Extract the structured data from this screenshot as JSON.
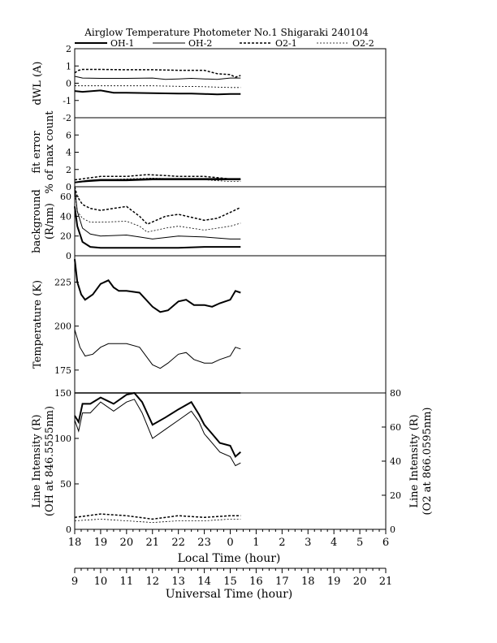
{
  "header": {
    "title": "Airglow Temperature Photometer No.1  Shigaraki  240104",
    "legend": [
      {
        "name": "OH-1",
        "style": "solid-thick"
      },
      {
        "name": "OH-2",
        "style": "solid-thin"
      },
      {
        "name": "O2-1",
        "style": "dashed-thick"
      },
      {
        "name": "O2-2",
        "style": "dashed-thin"
      }
    ]
  },
  "chart_data": [
    {
      "type": "line",
      "panel": "dwl",
      "ylabel": "dWL (A)",
      "ylim": [
        -2,
        2
      ],
      "yticks": [
        -2,
        -1,
        0,
        1,
        2
      ],
      "series": [
        {
          "name": "OH-1",
          "x": [
            18.0,
            18.3,
            19.0,
            19.5,
            20.0,
            21.0,
            22.0,
            22.5,
            23.0,
            23.5,
            24.0,
            24.4
          ],
          "y": [
            -0.45,
            -0.5,
            -0.42,
            -0.55,
            -0.55,
            -0.58,
            -0.6,
            -0.6,
            -0.62,
            -0.65,
            -0.62,
            -0.62
          ]
        },
        {
          "name": "OH-2",
          "x": [
            18.0,
            18.3,
            19.0,
            20.0,
            21.0,
            21.5,
            22.0,
            22.5,
            23.0,
            23.5,
            24.0,
            24.4
          ],
          "y": [
            0.4,
            0.3,
            0.28,
            0.28,
            0.3,
            0.22,
            0.25,
            0.28,
            0.25,
            0.22,
            0.3,
            0.3
          ]
        },
        {
          "name": "O2-1",
          "x": [
            18.0,
            18.15,
            18.3,
            19.0,
            20.0,
            21.0,
            22.0,
            23.0,
            23.5,
            24.0,
            24.2,
            24.4
          ],
          "y": [
            0.6,
            0.75,
            0.8,
            0.8,
            0.78,
            0.78,
            0.75,
            0.75,
            0.55,
            0.5,
            0.35,
            0.45
          ]
        },
        {
          "name": "O2-2",
          "x": [
            18.0,
            19.0,
            20.0,
            21.0,
            22.0,
            23.0,
            24.0,
            24.4
          ],
          "y": [
            -0.15,
            -0.15,
            -0.15,
            -0.15,
            -0.18,
            -0.2,
            -0.25,
            -0.25
          ]
        }
      ]
    },
    {
      "type": "line",
      "panel": "fit_error",
      "ylabel": "fit error",
      "ylabel2": "% of max count",
      "ylim": [
        0,
        8
      ],
      "yticks": [
        0,
        2,
        4,
        6
      ],
      "series": [
        {
          "name": "OH-1",
          "x": [
            18.0,
            18.5,
            19.0,
            20.0,
            21.0,
            22.0,
            23.0,
            24.0,
            24.4
          ],
          "y": [
            0.5,
            0.7,
            0.8,
            0.8,
            0.9,
            0.9,
            0.9,
            0.9,
            0.9
          ]
        },
        {
          "name": "OH-2",
          "x": [
            18.0,
            18.5,
            19.0,
            20.0,
            21.0,
            22.0,
            23.0,
            24.0,
            24.4
          ],
          "y": [
            0.5,
            0.6,
            0.7,
            0.7,
            0.8,
            0.8,
            0.8,
            0.8,
            0.8
          ]
        },
        {
          "name": "O2-1",
          "x": [
            18.0,
            18.5,
            19.0,
            20.0,
            20.8,
            21.5,
            22.0,
            23.0,
            24.0,
            24.4
          ],
          "y": [
            0.8,
            1.0,
            1.2,
            1.2,
            1.4,
            1.3,
            1.2,
            1.2,
            0.9,
            0.8
          ]
        },
        {
          "name": "O2-2",
          "x": [
            18.0,
            19.0,
            20.0,
            21.0,
            22.0,
            23.0,
            24.0,
            24.4
          ],
          "y": [
            0.5,
            0.8,
            0.9,
            1.0,
            0.9,
            0.8,
            0.6,
            0.6
          ]
        }
      ]
    },
    {
      "type": "line",
      "panel": "background",
      "ylabel": "background",
      "ylabel2": "(R/nm)",
      "ylim": [
        0,
        70
      ],
      "yticks": [
        0,
        20,
        40,
        60
      ],
      "series": [
        {
          "name": "OH-1",
          "x": [
            18.0,
            18.1,
            18.3,
            18.6,
            19.0,
            20.0,
            21.0,
            22.0,
            23.0,
            24.0,
            24.4
          ],
          "y": [
            50,
            30,
            14,
            9,
            8,
            8,
            8,
            8,
            9,
            9,
            9
          ]
        },
        {
          "name": "OH-2",
          "x": [
            18.0,
            18.1,
            18.3,
            18.6,
            19.0,
            20.0,
            20.5,
            21.0,
            22.0,
            23.0,
            24.0,
            24.4
          ],
          "y": [
            70,
            45,
            28,
            22,
            20,
            21,
            19,
            17,
            20,
            19,
            17,
            17
          ]
        },
        {
          "name": "O2-1",
          "x": [
            18.0,
            18.1,
            18.3,
            18.6,
            19.0,
            20.0,
            20.5,
            20.8,
            21.5,
            22.0,
            23.0,
            23.5,
            24.0,
            24.4
          ],
          "y": [
            70,
            60,
            52,
            48,
            46,
            50,
            40,
            32,
            40,
            42,
            36,
            38,
            44,
            49
          ]
        },
        {
          "name": "O2-2",
          "x": [
            18.0,
            18.1,
            18.3,
            18.6,
            19.0,
            20.0,
            20.5,
            20.8,
            21.5,
            22.0,
            23.0,
            24.0,
            24.4
          ],
          "y": [
            65,
            45,
            38,
            34,
            34,
            35,
            30,
            24,
            28,
            30,
            26,
            30,
            33
          ]
        }
      ]
    },
    {
      "type": "line",
      "panel": "temperature",
      "ylabel": "Temperature (K)",
      "ylim": [
        162,
        240
      ],
      "yticks": [
        175,
        200,
        225
      ],
      "series": [
        {
          "name": "OH-1",
          "x": [
            18.0,
            18.1,
            18.25,
            18.4,
            18.7,
            19.0,
            19.3,
            19.5,
            19.7,
            20.0,
            20.5,
            21.0,
            21.3,
            21.6,
            22.0,
            22.3,
            22.6,
            23.0,
            23.3,
            23.6,
            24.0,
            24.2,
            24.4
          ],
          "y": [
            238,
            225,
            218,
            215,
            218,
            224,
            226,
            222,
            220,
            220,
            219,
            211,
            208,
            209,
            214,
            215,
            212,
            212,
            211,
            213,
            215,
            220,
            219
          ]
        },
        {
          "name": "OH-2",
          "x": [
            18.0,
            18.2,
            18.4,
            18.7,
            19.0,
            19.3,
            19.6,
            20.0,
            20.5,
            21.0,
            21.3,
            21.6,
            22.0,
            22.3,
            22.6,
            23.0,
            23.3,
            23.6,
            24.0,
            24.2,
            24.4
          ],
          "y": [
            198,
            188,
            183,
            184,
            188,
            190,
            190,
            190,
            188,
            178,
            176,
            179,
            184,
            185,
            181,
            179,
            179,
            181,
            183,
            188,
            187
          ]
        }
      ]
    },
    {
      "type": "line",
      "panel": "intensity",
      "ylabel": "Line Intensity (R)",
      "ylabel2": "(OH at 846.5555nm)",
      "y2label": "Line Intensity (R)",
      "y2label2": "(O2 at 866.0595nm)",
      "ylim": [
        0,
        150
      ],
      "yticks": [
        0,
        50,
        100,
        150
      ],
      "y2lim": [
        0,
        80
      ],
      "y2ticks": [
        0,
        20,
        40,
        60,
        80
      ],
      "saturation_line": 150,
      "series": [
        {
          "name": "OH-1",
          "axis": "left",
          "x": [
            18.0,
            18.15,
            18.3,
            18.6,
            19.0,
            19.5,
            20.0,
            20.3,
            20.6,
            21.0,
            21.5,
            22.0,
            22.5,
            22.8,
            23.0,
            23.3,
            23.6,
            24.0,
            24.2,
            24.4
          ],
          "y": [
            125,
            118,
            138,
            138,
            145,
            138,
            148,
            150,
            140,
            115,
            123,
            132,
            140,
            126,
            115,
            105,
            95,
            92,
            80,
            85
          ]
        },
        {
          "name": "OH-2",
          "axis": "left",
          "x": [
            18.0,
            18.15,
            18.3,
            18.6,
            19.0,
            19.5,
            20.0,
            20.3,
            20.6,
            21.0,
            21.5,
            22.0,
            22.5,
            22.8,
            23.0,
            23.3,
            23.6,
            24.0,
            24.2,
            24.4
          ],
          "y": [
            120,
            108,
            128,
            128,
            140,
            130,
            140,
            143,
            128,
            100,
            110,
            120,
            130,
            118,
            105,
            95,
            85,
            80,
            70,
            73
          ]
        },
        {
          "name": "O2-1",
          "axis": "right",
          "x": [
            18.0,
            19.0,
            20.0,
            21.0,
            22.0,
            23.0,
            24.0,
            24.4
          ],
          "y": [
            7,
            9,
            8,
            6,
            8,
            7,
            8,
            8
          ]
        },
        {
          "name": "O2-2",
          "axis": "right",
          "x": [
            18.0,
            19.0,
            20.0,
            21.0,
            22.0,
            23.0,
            24.0,
            24.4
          ],
          "y": [
            5,
            6,
            5,
            4,
            5,
            5,
            6,
            6
          ]
        }
      ]
    }
  ],
  "xaxis": {
    "local": {
      "label": "Local Time (hour)",
      "min": 18,
      "max": 30,
      "ticks": [
        "18",
        "19",
        "20",
        "21",
        "22",
        "23",
        "0",
        "1",
        "2",
        "3",
        "4",
        "5",
        "6"
      ]
    },
    "utc": {
      "label": "Universal Time (hour)",
      "ticks": [
        "9",
        "10",
        "11",
        "12",
        "13",
        "14",
        "15",
        "16",
        "17",
        "18",
        "19",
        "20",
        "21"
      ]
    }
  }
}
